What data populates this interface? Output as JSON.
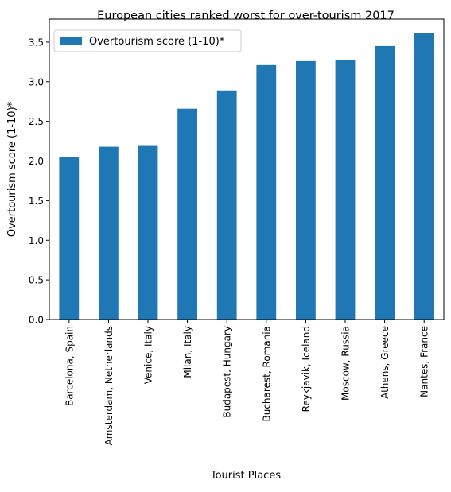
{
  "chart_data": {
    "type": "bar",
    "title": "European cities ranked worst for over-tourism 2017",
    "xlabel": "Tourist Places",
    "ylabel": "Overtourism score (1-10)*",
    "categories": [
      "Barcelona, Spain",
      "Amsterdam, Netherlands",
      "Venice, Italy",
      "Milan, Italy",
      "Budapest, Hungary",
      "Bucharest, Romania",
      "Reykjavik, Iceland",
      "Moscow, Russia",
      "Athens, Greece",
      "Nantes, France"
    ],
    "series": [
      {
        "name": "Overtourism score (1-10)*",
        "values": [
          2.05,
          2.18,
          2.19,
          2.66,
          2.89,
          3.21,
          3.26,
          3.27,
          3.45,
          3.61
        ],
        "color": "#1f77b4"
      }
    ],
    "ylim": [
      0,
      3.79
    ],
    "yticks": [
      "0.0",
      "0.5",
      "1.0",
      "1.5",
      "2.0",
      "2.5",
      "3.0",
      "3.5"
    ],
    "legend_position": "top-left",
    "grid": false
  }
}
